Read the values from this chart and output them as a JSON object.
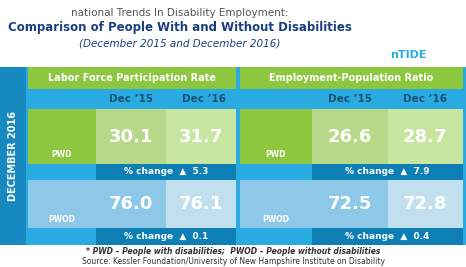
{
  "title_line1": "national Trends In Disability Employment:",
  "title_line2": "Comparison of People With and Without Disabilities",
  "title_line3": "(December 2015 and December 2016)",
  "left_section_title": "Labor Force Participation Rate",
  "right_section_title": "Employment-Population Ratio",
  "col1_label": "Dec ’15",
  "col2_label": "Dec ’16",
  "dec_label": "DECEMBER 2016",
  "left_pwd_val1": "30.1",
  "left_pwd_val2": "31.7",
  "left_pwd_change": "% change  ▲  5.3",
  "left_pwod_val1": "76.0",
  "left_pwod_val2": "76.1",
  "left_pwod_change": "% change  ▲  0.1",
  "right_pwd_val1": "26.6",
  "right_pwd_val2": "28.7",
  "right_pwd_change": "% change  ▲  7.9",
  "right_pwod_val1": "72.5",
  "right_pwod_val2": "72.8",
  "right_pwod_change": "% change  ▲  0.4",
  "footer1": "* PWD – People with disabilities;  PWOD – People without disabilities",
  "footer2": "Source: Kessler Foundation/University of New Hampshire Institute on Disability",
  "ntide_text": "nTIDE",
  "pwd_label": "PWD",
  "pwod_label": "PWOD",
  "col_header_color": "#1a5276",
  "green_dark": "#6aaa1e",
  "green_mid": "#8dc63f",
  "green_light": "#b7d98a",
  "green_lighter": "#c8e6a0",
  "blue_dark": "#0e7fb5",
  "blue_main": "#29abe2",
  "blue_light": "#8ec8e8",
  "blue_lighter": "#c2dff0",
  "white": "#ffffff",
  "title1_color": "#555555",
  "title2_color": "#1a3e7e",
  "title3_color": "#1a3e7e",
  "footer_color": "#333333",
  "ntide_color": "#29abe2"
}
